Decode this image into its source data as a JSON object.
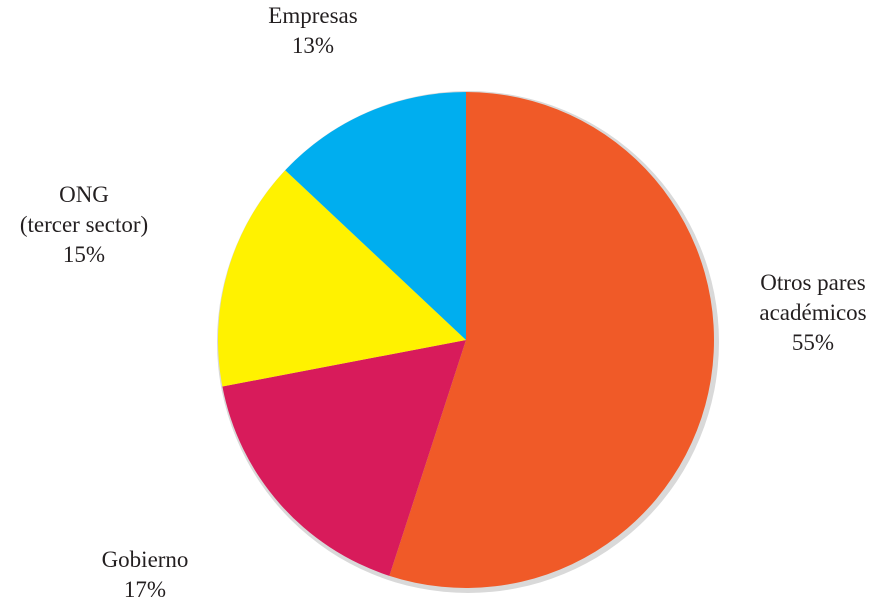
{
  "chart_data": {
    "type": "pie",
    "title": "",
    "start_angle_deg": 0,
    "direction": "clockwise",
    "slices": [
      {
        "label_lines": [
          "Otros pares",
          "académicos"
        ],
        "value": 55,
        "pct_label": "55%",
        "color": "#f05a28"
      },
      {
        "label_lines": [
          "Gobierno"
        ],
        "value": 17,
        "pct_label": "17%",
        "color": "#d81b5b"
      },
      {
        "label_lines": [
          "ONG",
          "(tercer sector)"
        ],
        "value": 15,
        "pct_label": "15%",
        "color": "#fff200"
      },
      {
        "label_lines": [
          "Empresas"
        ],
        "value": 13,
        "pct_label": "13%",
        "color": "#00aeef"
      }
    ],
    "shadow_color": "#d9d9d9"
  }
}
